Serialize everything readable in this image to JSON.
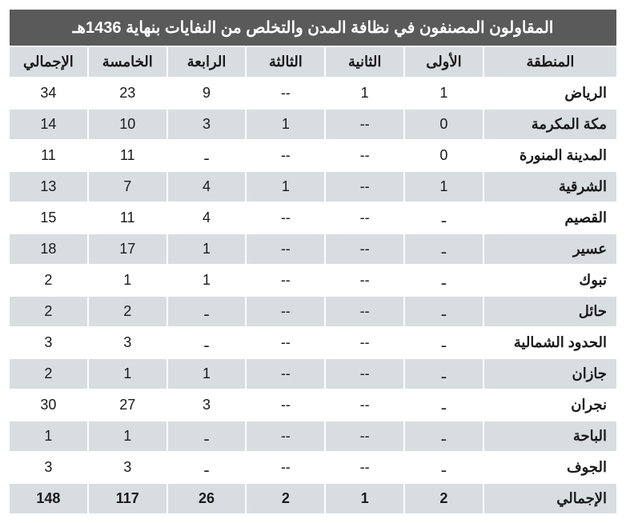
{
  "table": {
    "title": "المقاولون المصنفون في نظافة المدن والتخلص من النفايات بنهاية 1436هـ",
    "columns": [
      "المنطقة",
      "الأولى",
      "الثانية",
      "الثالثة",
      "الرابعة",
      "الخامسة",
      "الإجمالي"
    ],
    "rows": [
      {
        "region": "الرياض",
        "c1": "1",
        "c2": "1",
        "c3": "--",
        "c4": "9",
        "c5": "23",
        "total": "34"
      },
      {
        "region": "مكة المكرمة",
        "c1": "0",
        "c2": "--",
        "c3": "1",
        "c4": "3",
        "c5": "10",
        "total": "14"
      },
      {
        "region": "المدينة المنورة",
        "c1": "0",
        "c2": "--",
        "c3": "--",
        "c4": "ـ",
        "c5": "11",
        "total": "11"
      },
      {
        "region": "الشرقية",
        "c1": "1",
        "c2": "--",
        "c3": "1",
        "c4": "4",
        "c5": "7",
        "total": "13"
      },
      {
        "region": "القصيم",
        "c1": "ـ",
        "c2": "--",
        "c3": "--",
        "c4": "4",
        "c5": "11",
        "total": "15"
      },
      {
        "region": "عسير",
        "c1": "ـ",
        "c2": "--",
        "c3": "--",
        "c4": "1",
        "c5": "17",
        "total": "18"
      },
      {
        "region": "تبوك",
        "c1": "ـ",
        "c2": "--",
        "c3": "--",
        "c4": "1",
        "c5": "1",
        "total": "2"
      },
      {
        "region": "حائل",
        "c1": "ـ",
        "c2": "--",
        "c3": "--",
        "c4": "ـ",
        "c5": "2",
        "total": "2"
      },
      {
        "region": "الحدود الشمالية",
        "c1": "ـ",
        "c2": "--",
        "c3": "--",
        "c4": "ـ",
        "c5": "3",
        "total": "3"
      },
      {
        "region": "جازان",
        "c1": "ـ",
        "c2": "--",
        "c3": "--",
        "c4": "1",
        "c5": "1",
        "total": "2"
      },
      {
        "region": "نجران",
        "c1": "ـ",
        "c2": "--",
        "c3": "--",
        "c4": "3",
        "c5": "27",
        "total": "30"
      },
      {
        "region": "الباحة",
        "c1": "ـ",
        "c2": "--",
        "c3": "--",
        "c4": "ـ",
        "c5": "1",
        "total": "1"
      },
      {
        "region": "الجوف",
        "c1": "ـ",
        "c2": "--",
        "c3": "--",
        "c4": "ـ",
        "c5": "3",
        "total": "3"
      }
    ],
    "totals": {
      "region": "الإجمالي",
      "c1": "2",
      "c2": "1",
      "c3": "2",
      "c4": "26",
      "c5": "117",
      "total": "148"
    },
    "styling": {
      "title_bg": "#5a5a5a",
      "title_color": "#ffffff",
      "header_bg": "#d8dde0",
      "row_odd_bg": "#ffffff",
      "row_even_bg": "#d8dde0",
      "text_color": "#1a1a1a",
      "border_color": "#ffffff",
      "title_fontsize": 20,
      "header_fontsize": 18,
      "cell_fontsize": 18
    }
  }
}
